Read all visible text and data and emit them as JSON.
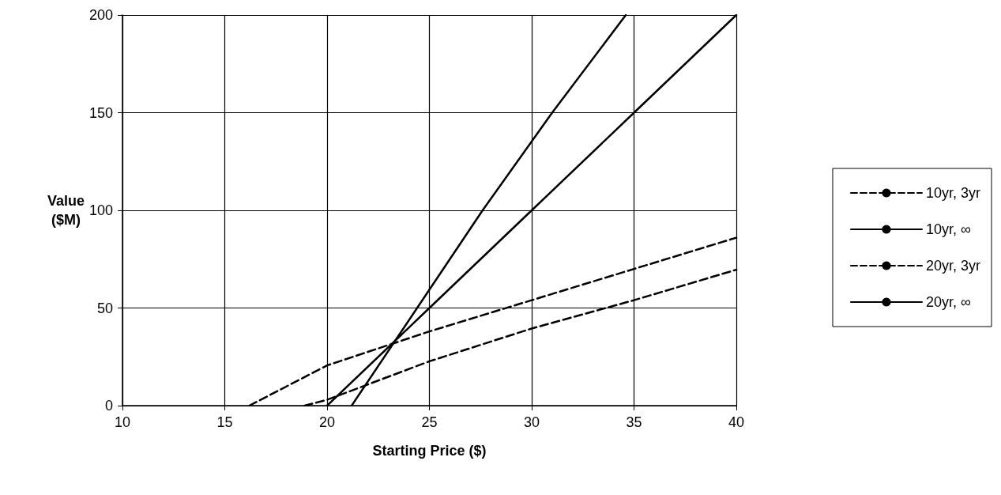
{
  "chart_data": {
    "type": "line",
    "xlabel": "Starting Price ($)",
    "ylabel": "Value ($M)",
    "xlim": [
      10,
      40
    ],
    "xticks": [
      10,
      15,
      20,
      25,
      30,
      35,
      40
    ],
    "ylim": [
      0,
      200
    ],
    "yticks": [
      0,
      50,
      100,
      150,
      200
    ],
    "grid": true,
    "legend": "right",
    "marker": "none",
    "series": [
      {
        "name": "10yr, 3yr",
        "color": "#000000",
        "line_style": "dashed",
        "x": [
          18.9,
          20,
          25,
          30,
          35,
          40
        ],
        "values": [
          0,
          3,
          22.7,
          39.5,
          54,
          69.6
        ]
      },
      {
        "name": "10yr, ∞",
        "color": "#000000",
        "line_style": "solid",
        "x": [
          20,
          25,
          30,
          35,
          40
        ],
        "values": [
          0,
          50,
          100,
          150,
          200
        ]
      },
      {
        "name": "20yr, 3yr",
        "color": "#000000",
        "line_style": "dashed",
        "x": [
          16.2,
          20,
          25,
          30,
          35,
          40
        ],
        "values": [
          0,
          20.6,
          38,
          54,
          70,
          86
        ]
      },
      {
        "name": "20yr, ∞",
        "color": "#000000",
        "line_style": "solid",
        "x": [
          21.2,
          24.4,
          27.6,
          31,
          34.6
        ],
        "values": [
          0,
          50,
          100,
          150,
          200
        ]
      }
    ]
  }
}
